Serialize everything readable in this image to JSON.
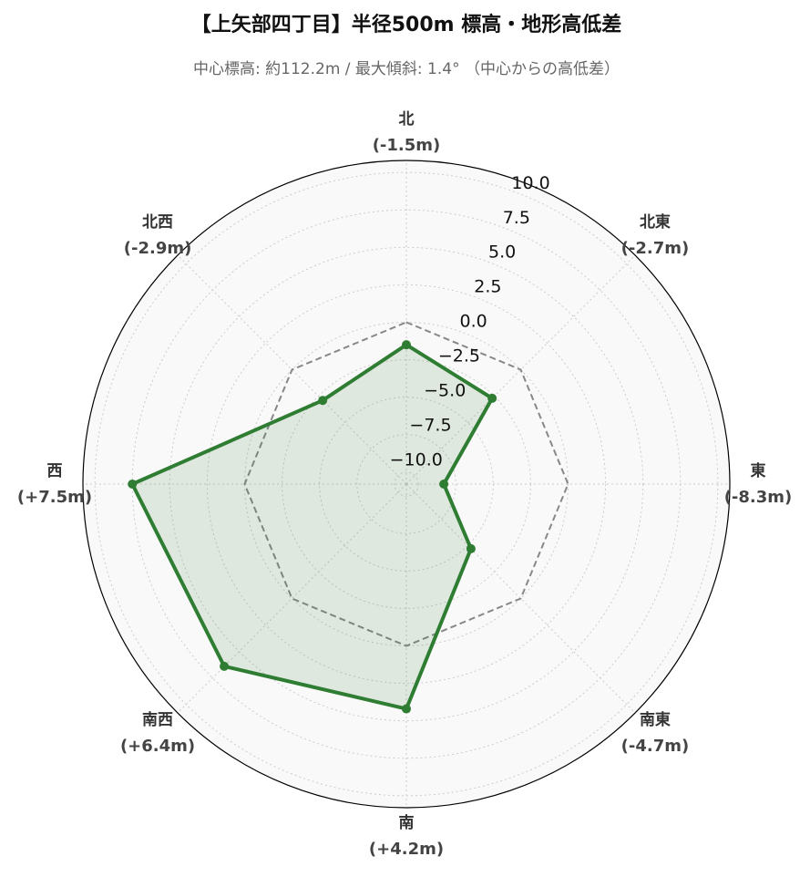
{
  "chart_data": {
    "type": "radar",
    "title": "【上矢部四丁目】半径500m 標高・地形高低差",
    "subtitle": "中心標高: 約112.2m / 最大傾斜: 1.4° （中心からの高低差）",
    "categories": [
      "北",
      "北東",
      "東",
      "南東",
      "南",
      "南西",
      "西",
      "北西"
    ],
    "values": [
      -1.5,
      -2.7,
      -8.3,
      -4.7,
      4.2,
      6.4,
      7.5,
      -2.9
    ],
    "value_labels": [
      "(-1.5m)",
      "(-2.7m)",
      "(-8.3m)",
      "(-4.7m)",
      "(+4.2m)",
      "(+6.4m)",
      "(+7.5m)",
      "(-2.9m)"
    ],
    "color": "#2e7d32",
    "baseline": 0,
    "ylim": [
      -10.8,
      10.8
    ],
    "yticks": [
      {
        "value": -10,
        "label": "−10.0"
      },
      {
        "value": -7.5,
        "label": "−7.5"
      },
      {
        "value": -5,
        "label": "−5.0"
      },
      {
        "value": -2.5,
        "label": "−2.5"
      },
      {
        "value": 0,
        "label": "0.0"
      },
      2.5,
      {
        "value": 5,
        "label": "5.0"
      },
      7.5,
      {
        "value": 10,
        "label": "10.0"
      }
    ],
    "grid": true
  }
}
